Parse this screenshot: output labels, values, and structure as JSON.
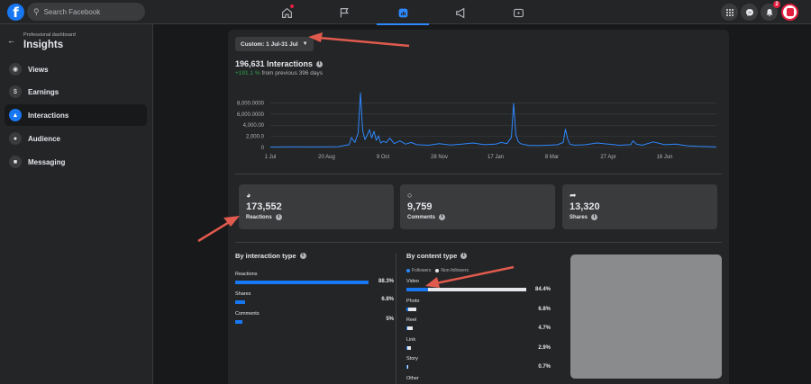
{
  "topbar": {
    "search_placeholder": "Search Facebook",
    "notification_count": "2"
  },
  "sidebar": {
    "subtitle": "Professional dashboard",
    "title": "Insights",
    "items": [
      {
        "label": "Views",
        "icon": "eye-icon"
      },
      {
        "label": "Earnings",
        "icon": "dollar-icon"
      },
      {
        "label": "Interactions",
        "icon": "thumbs-up-icon",
        "active": true
      },
      {
        "label": "Audience",
        "icon": "people-icon"
      },
      {
        "label": "Messaging",
        "icon": "chat-icon"
      }
    ]
  },
  "main": {
    "date_range": "Custom: 1 Jul-31 Jul",
    "interactions_title": "196,631 Interactions",
    "change_pct": "+191.1 %",
    "change_suffix": "from previous 396 days",
    "metrics": [
      {
        "value": "173,552",
        "label": "Reactions",
        "icon": "reaction-icon"
      },
      {
        "value": "9,759",
        "label": "Comments",
        "icon": "comment-icon"
      },
      {
        "value": "13,320",
        "label": "Shares",
        "icon": "share-icon"
      }
    ],
    "by_interaction": {
      "title": "By interaction type",
      "rows": [
        {
          "label": "Reactions",
          "pct": "88.3%",
          "value": 88.3
        },
        {
          "label": "Shares",
          "pct": "6.8%",
          "value": 6.8
        },
        {
          "label": "Comments",
          "pct": "5%",
          "value": 5
        }
      ]
    },
    "by_content": {
      "title": "By content type",
      "legend_followers": "Followers",
      "legend_nonfollowers": "Non-followers",
      "rows": [
        {
          "label": "Video",
          "pct": "84.4%",
          "value": 84.4
        },
        {
          "label": "Photo",
          "pct": "6.8%",
          "value": 6.8
        },
        {
          "label": "Reel",
          "pct": "4.7%",
          "value": 4.7
        },
        {
          "label": "Link",
          "pct": "2.9%",
          "value": 2.9
        },
        {
          "label": "Story",
          "pct": "0.7%",
          "value": 0.7
        },
        {
          "label": "Other",
          "pct": "",
          "value": 0
        }
      ]
    }
  },
  "colors": {
    "accent": "#2d88ff",
    "bar_blue": "#1877f2",
    "positive": "#31a24c",
    "annotation_arrow": "#e05a4e"
  },
  "chart_data": {
    "type": "line",
    "title": "",
    "xlabel": "",
    "ylabel": "",
    "y_tick_labels": [
      "0",
      "2,000.0",
      "4,000.00",
      "6,000.0000",
      "8,000.0000"
    ],
    "y_ticks": [
      0,
      2000,
      4000,
      6000,
      8000
    ],
    "ylim": [
      0,
      10500
    ],
    "x_tick_labels": [
      "1 Jul",
      "20 Aug",
      "9 Oct",
      "28 Nov",
      "17 Jan",
      "8 Mar",
      "27 Apr",
      "16 Jun"
    ],
    "x_tick_days": [
      0,
      50,
      100,
      150,
      200,
      250,
      300,
      350
    ],
    "xlim": [
      0,
      396
    ],
    "grid": true,
    "series": [
      {
        "x": [
          0,
          20,
          40,
          60,
          70,
          72,
          75,
          78,
          80,
          82,
          84,
          86,
          88,
          90,
          92,
          94,
          96,
          98,
          100,
          103,
          106,
          110,
          115,
          120,
          125,
          130,
          140,
          150,
          160,
          170,
          180,
          190,
          200,
          205,
          210,
          214,
          216,
          218,
          220,
          222,
          226,
          230,
          240,
          250,
          255,
          260,
          262,
          264,
          266,
          270,
          280,
          290,
          300,
          310,
          320,
          322,
          325,
          330,
          340,
          350,
          360,
          370,
          380,
          390,
          396
        ],
        "y": [
          80,
          120,
          100,
          150,
          500,
          1800,
          900,
          2600,
          9800,
          3000,
          1400,
          2200,
          3200,
          1700,
          2900,
          1300,
          2100,
          800,
          1100,
          900,
          1700,
          700,
          1200,
          600,
          900,
          500,
          400,
          700,
          450,
          600,
          800,
          500,
          600,
          900,
          700,
          1800,
          7900,
          2300,
          1100,
          700,
          500,
          350,
          350,
          450,
          500,
          900,
          3300,
          1500,
          600,
          400,
          500,
          800,
          600,
          400,
          500,
          1200,
          600,
          400,
          1000,
          500,
          600,
          300,
          200,
          150,
          100
        ]
      }
    ]
  }
}
